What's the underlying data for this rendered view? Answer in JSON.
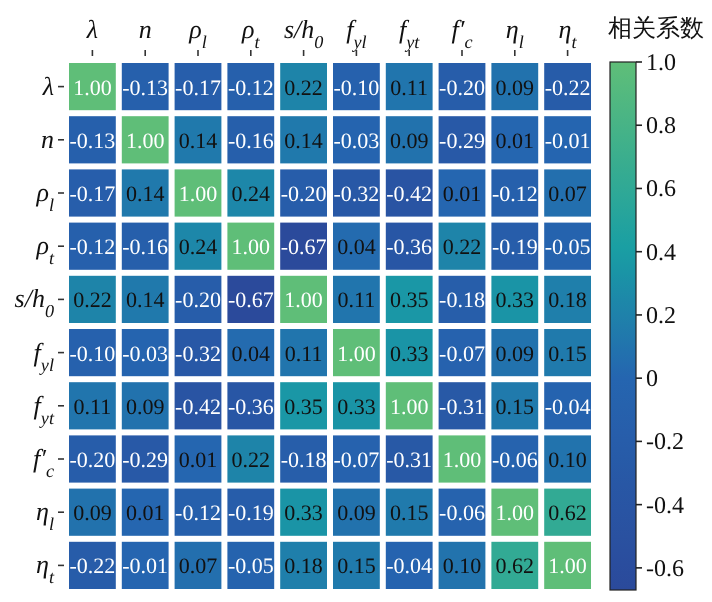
{
  "chart_data": {
    "type": "heatmap",
    "clabel": "相关系数",
    "categories": [
      "λ",
      "n",
      "ρ$_{l}$",
      "ρ$_{t}$",
      "s/h$_{0}$",
      "f$_{yl}$",
      "f$_{yt}$",
      "f′$_{c}$",
      "η$_{l}$",
      "η$_{t}$"
    ],
    "y_categories": [
      "λ",
      "n",
      "ρ$_{l}$",
      "ρ$_{t}$",
      "s/h$_{0}$",
      "f$_{yl}$",
      "f$_{yt}$",
      "f′$_{c}$",
      "η$_{l}$",
      "η$_{t}$"
    ],
    "cells": [
      [
        1.0,
        -0.13,
        -0.17,
        -0.12,
        0.22,
        -0.1,
        0.11,
        -0.2,
        0.09,
        -0.22
      ],
      [
        -0.13,
        1.0,
        0.14,
        -0.16,
        0.14,
        -0.03,
        0.09,
        -0.29,
        0.01,
        -0.01
      ],
      [
        -0.17,
        0.14,
        1.0,
        0.24,
        -0.2,
        -0.32,
        -0.42,
        0.01,
        -0.12,
        0.07
      ],
      [
        -0.12,
        -0.16,
        0.24,
        1.0,
        -0.67,
        0.04,
        -0.36,
        0.22,
        -0.19,
        -0.05
      ],
      [
        0.22,
        0.14,
        -0.2,
        -0.67,
        1.0,
        0.11,
        0.35,
        -0.18,
        0.33,
        0.18
      ],
      [
        -0.1,
        -0.03,
        -0.32,
        0.04,
        0.11,
        1.0,
        0.33,
        -0.07,
        0.09,
        0.15
      ],
      [
        0.11,
        0.09,
        -0.42,
        -0.36,
        0.35,
        0.33,
        1.0,
        -0.31,
        0.15,
        -0.04
      ],
      [
        -0.2,
        -0.29,
        0.01,
        0.22,
        -0.18,
        -0.07,
        -0.31,
        1.0,
        -0.06,
        0.1
      ],
      [
        0.09,
        0.01,
        -0.12,
        -0.19,
        0.33,
        0.09,
        0.15,
        -0.06,
        1.0,
        0.62
      ],
      [
        -0.22,
        -0.01,
        0.07,
        -0.05,
        0.18,
        0.15,
        -0.04,
        0.1,
        0.62,
        1.0
      ]
    ],
    "cell_labels": [
      [
        "1.00",
        "-0.13",
        "-0.17",
        "-0.12",
        "0.22",
        "-0.10",
        "0.11",
        "-0.20",
        "0.09",
        "-0.22"
      ],
      [
        "-0.13",
        "1.00",
        "0.14",
        "-0.16",
        "0.14",
        "-0.03",
        "0.09",
        "-0.29",
        "0.01",
        "-0.01"
      ],
      [
        "-0.17",
        "0.14",
        "1.00",
        "0.24",
        "-0.20",
        "-0.32",
        "-0.42",
        "0.01",
        "-0.12",
        "0.07"
      ],
      [
        "-0.12",
        "-0.16",
        "0.24",
        "1.00",
        "-0.67",
        "0.04",
        "-0.36",
        "0.22",
        "-0.19",
        "-0.05"
      ],
      [
        "0.22",
        "0.14",
        "-0.20",
        "-0.67",
        "1.00",
        "0.11",
        "0.35",
        "-0.18",
        "0.33",
        "0.18"
      ],
      [
        "-0.10",
        "-0.03",
        "-0.32",
        "0.04",
        "0.11",
        "1.00",
        "0.33",
        "-0.07",
        "0.09",
        "0.15"
      ],
      [
        "0.11",
        "0.09",
        "-0.42",
        "-0.36",
        "0.35",
        "0.33",
        "1.00",
        "-0.31",
        "0.15",
        "-0.04"
      ],
      [
        "-0.20",
        "-0.29",
        "0.01",
        "0.22",
        "-0.18",
        "-0.07",
        "-0.31",
        "1.00",
        "-0.06",
        "0.10"
      ],
      [
        "0.09",
        "0.01",
        "-0.12",
        "-0.19",
        "0.33",
        "0.09",
        "0.15",
        "-0.06",
        "1.00",
        "0.62"
      ],
      [
        "-0.22",
        "-0.01",
        "0.07",
        "-0.05",
        "0.18",
        "0.15",
        "-0.04",
        "0.10",
        "0.62",
        "1.00"
      ]
    ],
    "clim": [
      -0.67,
      1.0
    ],
    "cticks": [
      {
        "value": 1.0,
        "label": "1.0"
      },
      {
        "value": 0.8,
        "label": "0.8"
      },
      {
        "value": 0.6,
        "label": "0.6"
      },
      {
        "value": 0.4,
        "label": "0.4"
      },
      {
        "value": 0.2,
        "label": "0.2"
      },
      0,
      {
        "value": -0.2,
        "label": "-0.2"
      },
      {
        "value": -0.4,
        "label": "-0.4"
      },
      {
        "value": -0.6,
        "label": "-0.6"
      }
    ]
  }
}
